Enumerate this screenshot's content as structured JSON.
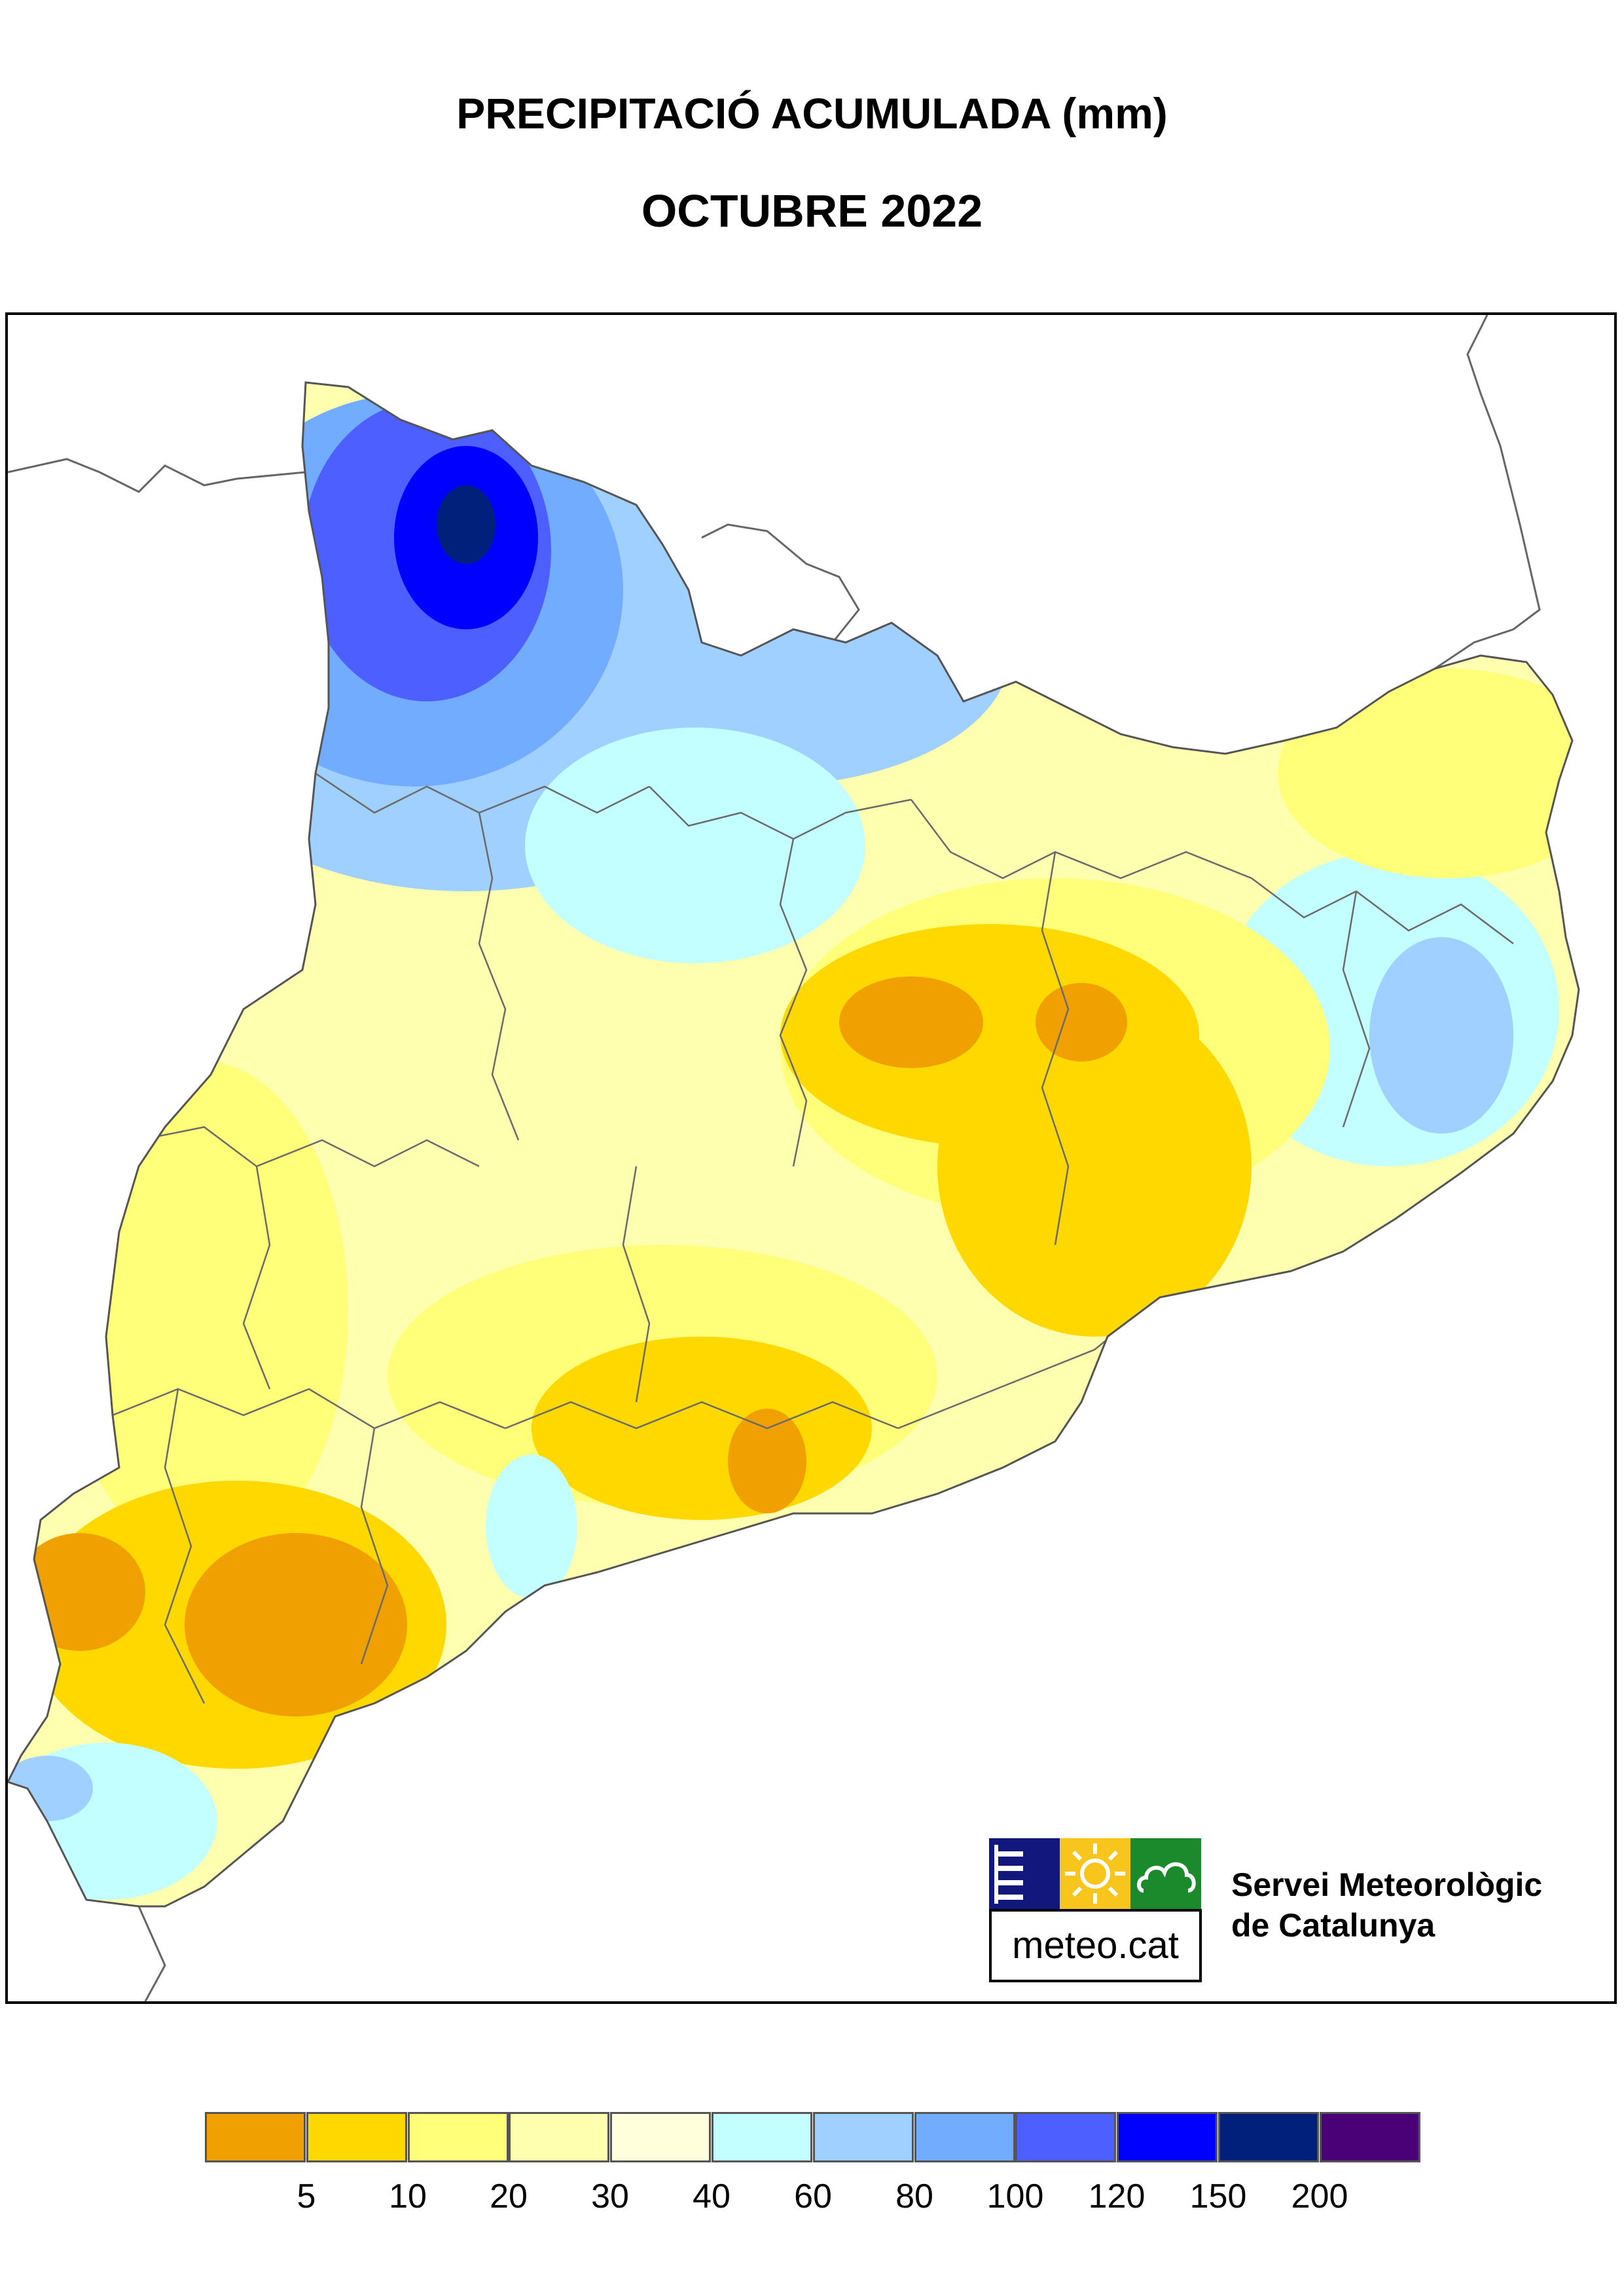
{
  "title": "PRECIPITACIÓ ACUMULADA (mm)",
  "subtitle": "OCTUBRE 2022",
  "logo": {
    "label": "meteo.cat",
    "icons": [
      "menu-lines-icon",
      "sun-icon",
      "cloud-icon"
    ],
    "colors": [
      "#12177e",
      "#f7c51c",
      "#1a8a2c"
    ]
  },
  "organization": {
    "line1": "Servei Meteorològic",
    "line2": "de Catalunya"
  },
  "legend": {
    "colors": [
      "#f0a000",
      "#ffd800",
      "#ffff7a",
      "#ffffb0",
      "#ffffdc",
      "#c4ffff",
      "#a0d0ff",
      "#72acff",
      "#4d5fff",
      "#0000ff",
      "#00207c",
      "#4a0076"
    ],
    "labels": [
      "5",
      "10",
      "20",
      "30",
      "40",
      "60",
      "80",
      "100",
      "120",
      "150",
      "200"
    ]
  },
  "map_colors": {
    "outside": "#ffffff",
    "border": "#555555"
  }
}
